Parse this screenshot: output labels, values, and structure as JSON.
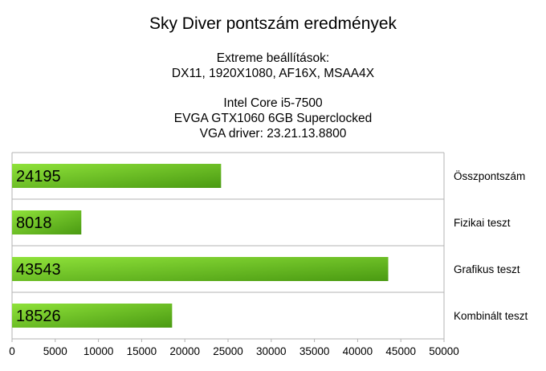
{
  "chart_data": {
    "type": "bar",
    "orientation": "horizontal",
    "title": "Sky Diver pontszám eredmények",
    "subtitle_lines": [
      "Extreme beállítások:",
      "DX11, 1920X1080, AF16X, MSAA4X",
      "Intel Core i5-7500",
      "EVGA GTX1060 6GB Superclocked",
      "VGA driver: 23.21.13.8800"
    ],
    "categories": [
      "Összpontszám",
      "Fizikai teszt",
      "Grafikus teszt",
      "Kombinált teszt"
    ],
    "values": [
      24195,
      8018,
      43543,
      18526
    ],
    "data_labels": [
      "24195",
      "8018",
      "43543",
      "18526"
    ],
    "xlim": [
      0,
      50000
    ],
    "x_ticks": [
      "0",
      "5000",
      "10000",
      "15000",
      "20000",
      "25000",
      "30000",
      "35000",
      "40000",
      "45000",
      "50000"
    ],
    "grid": true,
    "bar_color_light": "#8fe23a",
    "bar_color_dark": "#4a9a12",
    "xlabel": "",
    "ylabel": ""
  }
}
